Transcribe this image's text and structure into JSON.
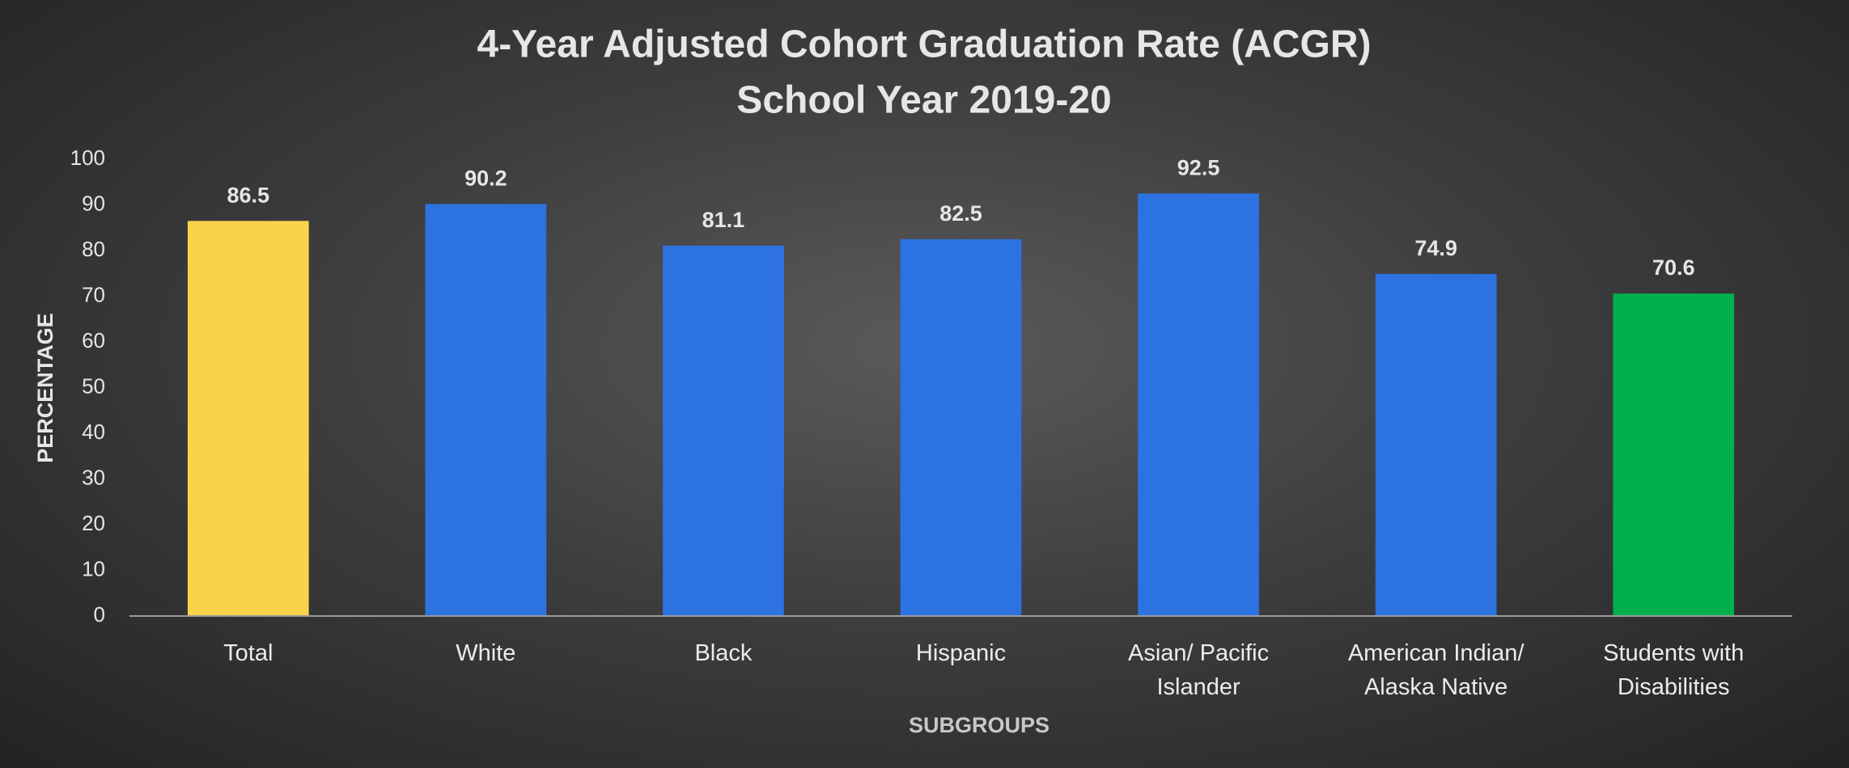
{
  "chart_data": {
    "type": "bar",
    "title": "4-Year Adjusted Cohort Graduation Rate (ACGR)",
    "subtitle": "School Year 2019-20",
    "x_label": "SUBGROUPS",
    "y_label": "PERCENTAGE",
    "categories": [
      "Total",
      "White",
      "Black",
      "Hispanic",
      "Asian/ Pacific Islander",
      "American Indian/ Alaska Native",
      "Students with Disabilities"
    ],
    "values": [
      86.5,
      90.2,
      81.1,
      82.5,
      92.5,
      74.9,
      70.6
    ],
    "colors": [
      "#f9d34b",
      "#2d72e1",
      "#2d72e1",
      "#2d72e1",
      "#2d72e1",
      "#2d72e1",
      "#00b04f"
    ],
    "ylim": [
      0,
      100
    ],
    "yticks": [
      0,
      10,
      20,
      30,
      40,
      50,
      60,
      70,
      80,
      90,
      100
    ],
    "grid": false
  }
}
